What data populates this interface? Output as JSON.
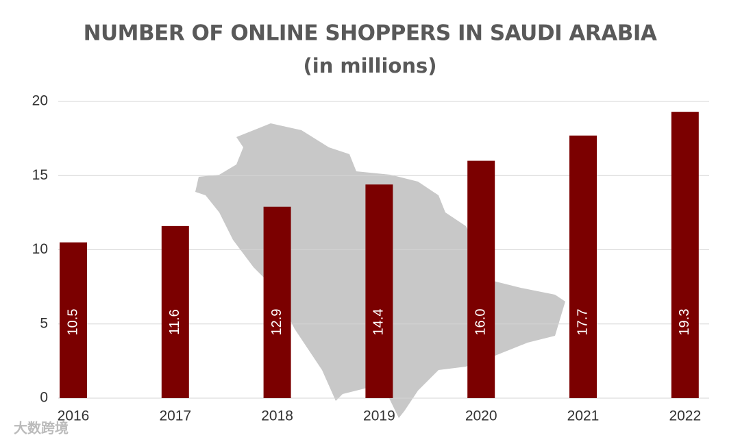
{
  "chart_data": {
    "type": "bar",
    "title": "NUMBER OF ONLINE SHOPPERS IN SAUDI ARABIA",
    "subtitle": "(in millions)",
    "categories": [
      "2016",
      "2017",
      "2018",
      "2019",
      "2020",
      "2021",
      "2022"
    ],
    "values": [
      10.5,
      11.6,
      12.9,
      14.4,
      16.0,
      17.7,
      19.3
    ],
    "value_labels": [
      "10.5",
      "11.6",
      "12.9",
      "14.4",
      "16.0",
      "17.7",
      "19.3"
    ],
    "color": "#7b0000",
    "ylim": [
      0,
      20
    ],
    "yticks": [
      0,
      5,
      10,
      15,
      20
    ],
    "grid": true,
    "watermark": "大数跨境"
  }
}
